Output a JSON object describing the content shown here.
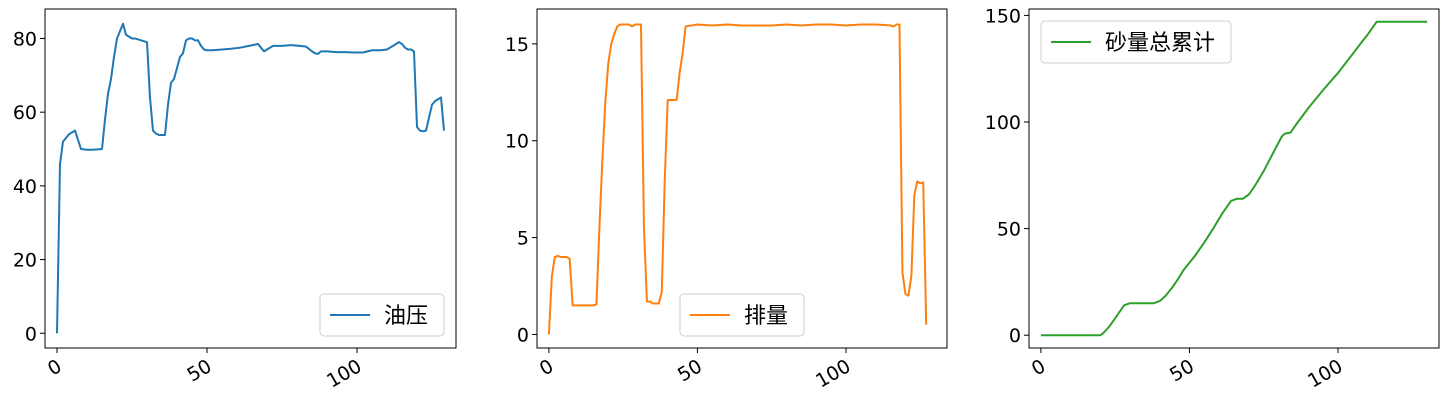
{
  "chart_data": [
    {
      "type": "line",
      "xlim": [
        -4,
        133
      ],
      "ylim": [
        -4,
        88
      ],
      "xticks": [
        0,
        50,
        100
      ],
      "yticks": [
        0,
        20,
        40,
        60,
        80
      ],
      "legend_position": "lower-right",
      "series": [
        {
          "name": "油压",
          "color": "#1f77b4",
          "x": [
            0,
            1,
            2,
            4,
            6,
            8,
            10,
            12,
            15,
            16,
            17,
            18,
            19,
            20,
            21,
            22,
            23,
            24,
            25,
            26,
            28,
            30,
            31,
            32,
            33,
            34,
            35,
            36,
            37,
            38,
            39,
            40,
            41,
            42,
            43,
            44,
            45,
            46,
            47,
            48,
            49,
            50,
            52,
            55,
            58,
            61,
            64,
            67,
            68,
            69,
            70,
            72,
            75,
            78,
            81,
            83,
            85,
            86,
            87,
            88,
            90,
            93,
            96,
            99,
            102,
            105,
            108,
            110,
            112,
            113,
            114,
            115,
            116,
            117,
            118,
            119,
            120,
            121,
            122,
            123,
            125,
            126,
            127,
            128,
            129
          ],
          "values": [
            0,
            46,
            52,
            54,
            55,
            50,
            49.8,
            49.8,
            50,
            58,
            65,
            69,
            75,
            80,
            82,
            84,
            81,
            80.5,
            80,
            80,
            79.5,
            79,
            64,
            55,
            54.2,
            53.8,
            53.8,
            53.8,
            62,
            68,
            69,
            72,
            75,
            76,
            79.5,
            80,
            80,
            79.5,
            79.5,
            78,
            77,
            76.8,
            76.8,
            77,
            77.2,
            77.5,
            78,
            78.5,
            77.5,
            76.5,
            77,
            78,
            78,
            78.2,
            78,
            77.8,
            76.5,
            76,
            75.8,
            76.5,
            76.5,
            76.3,
            76.3,
            76.2,
            76.2,
            76.8,
            76.8,
            77,
            78,
            78.5,
            79,
            78.5,
            77.5,
            77,
            77,
            76.5,
            56,
            55,
            54.8,
            55,
            62,
            63,
            63.5,
            64,
            55
          ]
        }
      ]
    },
    {
      "type": "line",
      "xlim": [
        -4,
        134
      ],
      "ylim": [
        -0.7,
        16.8
      ],
      "xticks": [
        0,
        50,
        100
      ],
      "yticks": [
        0,
        5,
        10,
        15
      ],
      "legend_position": "lower-center",
      "series": [
        {
          "name": "排量",
          "color": "#ff7f0e",
          "x": [
            0,
            1,
            2,
            3,
            4,
            5,
            6,
            7,
            8,
            10,
            12,
            15,
            16,
            17,
            18,
            19,
            20,
            21,
            22,
            23,
            24,
            25,
            26,
            27,
            28,
            29,
            30,
            31,
            32,
            33,
            34,
            35,
            36,
            37,
            38,
            39,
            40,
            41,
            42,
            43,
            44,
            45,
            46,
            50,
            55,
            60,
            65,
            70,
            75,
            80,
            85,
            90,
            95,
            100,
            105,
            110,
            115,
            116,
            117,
            118,
            119,
            120,
            121,
            122,
            123,
            124,
            125,
            126,
            127
          ],
          "values": [
            0,
            3,
            4,
            4.05,
            4,
            4,
            4,
            3.9,
            1.5,
            1.5,
            1.5,
            1.5,
            1.55,
            5.5,
            9,
            12,
            14,
            15,
            15.5,
            15.9,
            16,
            16,
            16,
            16,
            15.9,
            16,
            16,
            16,
            5.5,
            1.7,
            1.7,
            1.6,
            1.6,
            1.6,
            2.2,
            8,
            12.1,
            12.1,
            12.1,
            12.1,
            13.5,
            14.5,
            15.9,
            16,
            15.95,
            16,
            15.95,
            15.95,
            15.95,
            16,
            15.95,
            16,
            16,
            15.95,
            16,
            16,
            15.95,
            15.9,
            16,
            16,
            3.2,
            2.1,
            2,
            3,
            7.2,
            7.9,
            7.8,
            7.85,
            0.5
          ]
        }
      ]
    },
    {
      "type": "line",
      "xlim": [
        -4,
        134
      ],
      "ylim": [
        -6,
        153
      ],
      "xticks": [
        0,
        50,
        100
      ],
      "yticks": [
        0,
        50,
        100,
        150
      ],
      "legend_position": "upper-left",
      "series": [
        {
          "name": "砂量总累计",
          "color": "#2ca02c",
          "x": [
            0,
            5,
            10,
            15,
            20,
            21,
            22,
            23,
            24,
            26,
            28,
            30,
            32,
            35,
            38,
            40,
            42,
            44,
            46,
            48,
            50,
            52,
            55,
            58,
            61,
            64,
            66,
            68,
            70,
            72,
            75,
            78,
            81,
            82,
            84,
            86,
            90,
            95,
            100,
            105,
            108,
            110,
            111,
            113,
            115,
            120,
            125,
            128,
            130
          ],
          "values": [
            0,
            0,
            0,
            0,
            0,
            1,
            2.5,
            4,
            6,
            10,
            14,
            15,
            15,
            15,
            15,
            16,
            18.5,
            22,
            26,
            30.5,
            34,
            37.5,
            43.5,
            50,
            57,
            63,
            64,
            64,
            66,
            70,
            77,
            85,
            93,
            94.5,
            95,
            99,
            106.5,
            115,
            123,
            132,
            137.5,
            141,
            143,
            147,
            147,
            147,
            147,
            147,
            147
          ]
        }
      ]
    }
  ]
}
